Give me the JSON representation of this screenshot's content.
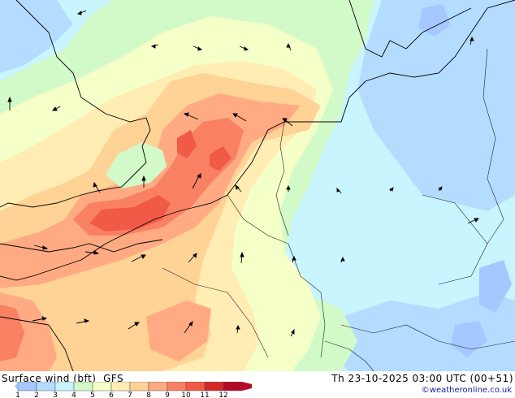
{
  "title": "Surface wind (bft)",
  "model": "GFS",
  "valid_time": "Th 23-10-2025 03:00 UTC (00+51)",
  "credit": "©weatheronline.co.uk",
  "legend": {
    "labels": [
      "1",
      "2",
      "3",
      "4",
      "5",
      "6",
      "7",
      "8",
      "9",
      "10",
      "11",
      "12"
    ],
    "colors": [
      "#a4c8ff",
      "#b4dcff",
      "#c8f5ff",
      "#d2fac8",
      "#f5ffc8",
      "#ffedb4",
      "#ffd296",
      "#ffaa82",
      "#fa8064",
      "#f05a46",
      "#d22828",
      "#b40a28"
    ]
  },
  "map_colors": {
    "bft1": "#a4c8ff",
    "bft2": "#b4dcff",
    "bft3": "#c8f5ff",
    "bft4": "#d2fac8",
    "bft5": "#f5ffc8",
    "bft6": "#ffedb4",
    "bft7": "#ffd296",
    "bft8": "#ffaa82",
    "bft9": "#fa8064",
    "bft10": "#f05a46",
    "coast": "#000000",
    "border": "#222222"
  }
}
